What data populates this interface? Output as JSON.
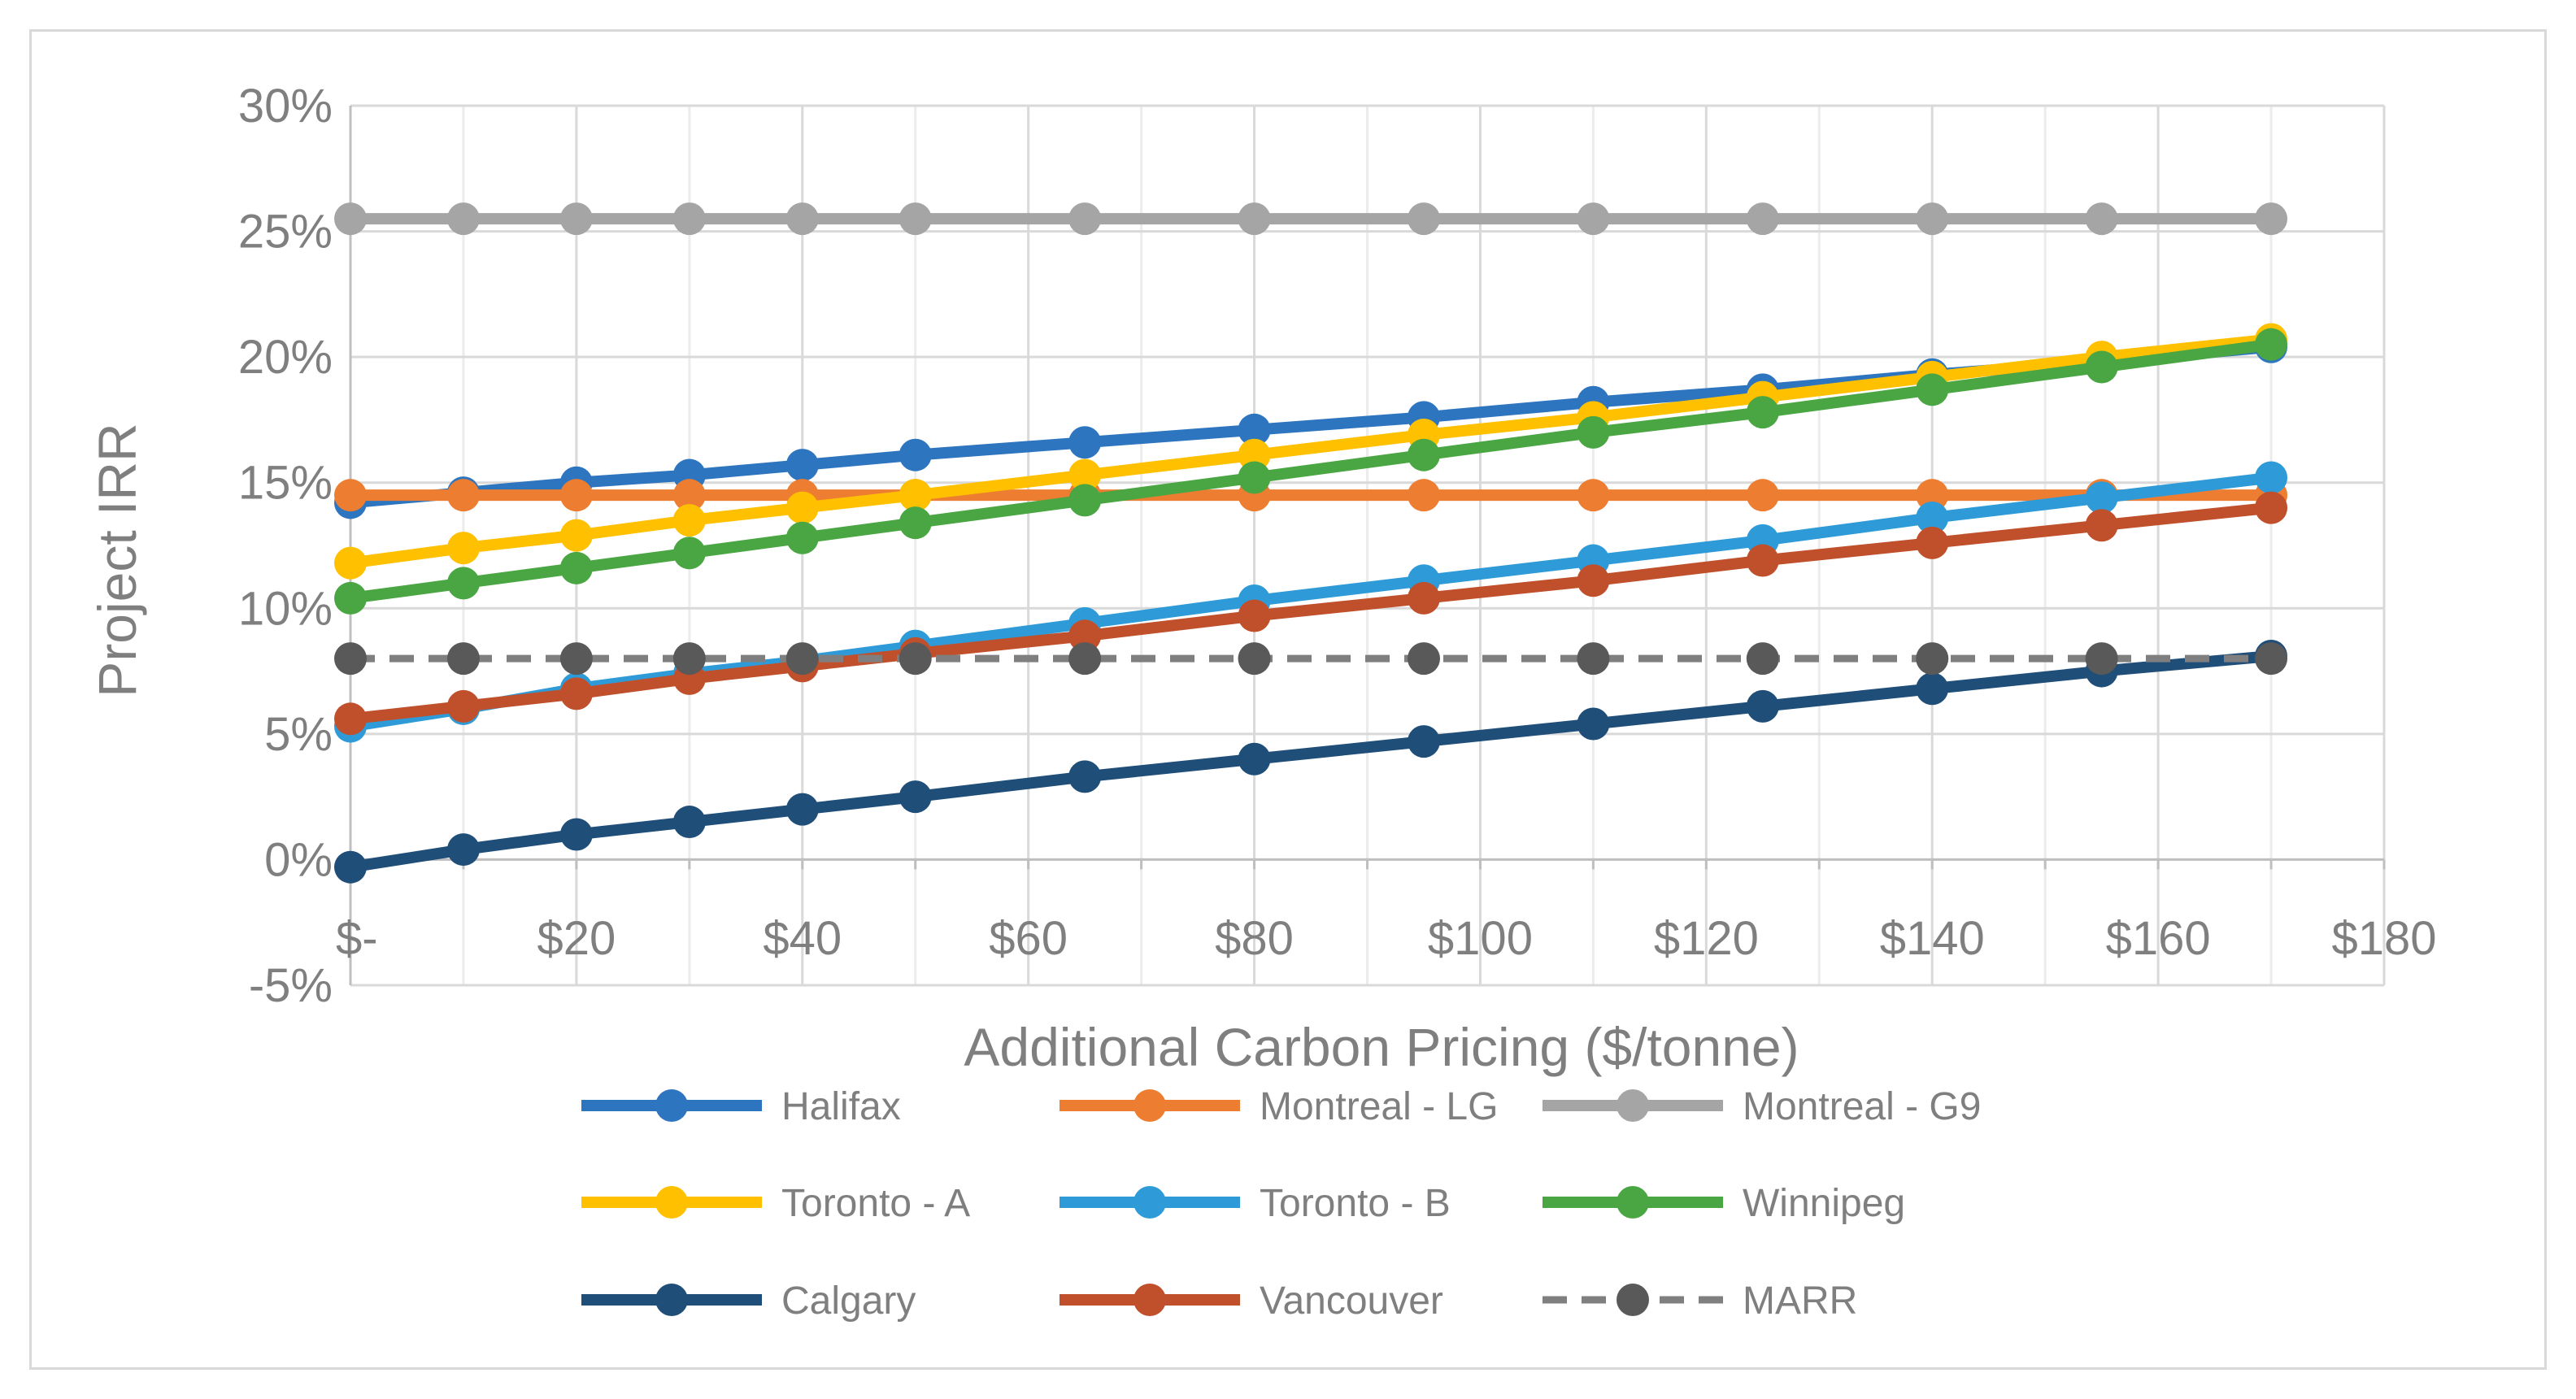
{
  "chart_data": {
    "type": "line",
    "title": "",
    "xlabel": "Additional Carbon Pricing ($/tonne)",
    "ylabel": "Project IRR",
    "xlim": [
      0,
      180
    ],
    "ylim": [
      -5,
      30
    ],
    "x_ticks": [
      0,
      20,
      40,
      60,
      80,
      100,
      120,
      140,
      160,
      180
    ],
    "x_tick_labels": [
      "$-",
      "$20",
      "$40",
      "$60",
      "$80",
      "$100",
      "$120",
      "$140",
      "$160",
      "$180"
    ],
    "y_ticks": [
      -5,
      0,
      5,
      10,
      15,
      20,
      25,
      30
    ],
    "y_tick_labels": [
      "-5%",
      "0%",
      "5%",
      "10%",
      "15%",
      "20%",
      "25%",
      "30%"
    ],
    "grid": true,
    "legend_position": "bottom",
    "x": [
      0,
      10,
      20,
      30,
      40,
      50,
      65,
      80,
      95,
      110,
      125,
      140,
      155,
      170
    ],
    "series": [
      {
        "name": "Halifax",
        "color": "#2e75c0",
        "dashed": false,
        "values": [
          14.2,
          14.6,
          15.0,
          15.3,
          15.7,
          16.1,
          16.6,
          17.1,
          17.6,
          18.2,
          18.7,
          19.3,
          19.8,
          20.4
        ]
      },
      {
        "name": "Montreal - LG",
        "color": "#ed7d31",
        "dashed": false,
        "values": [
          14.5,
          14.5,
          14.5,
          14.5,
          14.5,
          14.5,
          14.5,
          14.5,
          14.5,
          14.5,
          14.5,
          14.5,
          14.5,
          14.5
        ]
      },
      {
        "name": "Montreal - G9",
        "color": "#a5a5a5",
        "dashed": false,
        "values": [
          25.5,
          25.5,
          25.5,
          25.5,
          25.5,
          25.5,
          25.5,
          25.5,
          25.5,
          25.5,
          25.5,
          25.5,
          25.5,
          25.5
        ]
      },
      {
        "name": "Toronto - A",
        "color": "#ffc000",
        "dashed": false,
        "values": [
          11.8,
          12.4,
          12.9,
          13.5,
          14.0,
          14.5,
          15.3,
          16.1,
          16.9,
          17.6,
          18.4,
          19.2,
          20.0,
          20.7
        ]
      },
      {
        "name": "Toronto - B",
        "color": "#2e9bd8",
        "dashed": false,
        "values": [
          5.3,
          6.0,
          6.8,
          7.4,
          7.9,
          8.5,
          9.4,
          10.3,
          11.1,
          11.9,
          12.7,
          13.6,
          14.4,
          15.2
        ]
      },
      {
        "name": "Winnipeg",
        "color": "#4aa642",
        "dashed": false,
        "values": [
          10.4,
          11.0,
          11.6,
          12.2,
          12.8,
          13.4,
          14.3,
          15.2,
          16.1,
          17.0,
          17.8,
          18.7,
          19.6,
          20.5
        ]
      },
      {
        "name": "Calgary",
        "color": "#1f4e79",
        "dashed": false,
        "values": [
          -0.3,
          0.4,
          1.0,
          1.5,
          2.0,
          2.5,
          3.3,
          4.0,
          4.7,
          5.4,
          6.1,
          6.8,
          7.5,
          8.1
        ]
      },
      {
        "name": "Vancouver",
        "color": "#c0502b",
        "dashed": false,
        "values": [
          5.6,
          6.1,
          6.6,
          7.2,
          7.7,
          8.2,
          8.9,
          9.7,
          10.4,
          11.1,
          11.9,
          12.6,
          13.3,
          14.0
        ]
      },
      {
        "name": "MARR",
        "color": "#7f7f7f",
        "marker_color": "#595959",
        "dashed": true,
        "values": [
          8.0,
          8.0,
          8.0,
          8.0,
          8.0,
          8.0,
          8.0,
          8.0,
          8.0,
          8.0,
          8.0,
          8.0,
          8.0,
          8.0
        ]
      }
    ]
  }
}
